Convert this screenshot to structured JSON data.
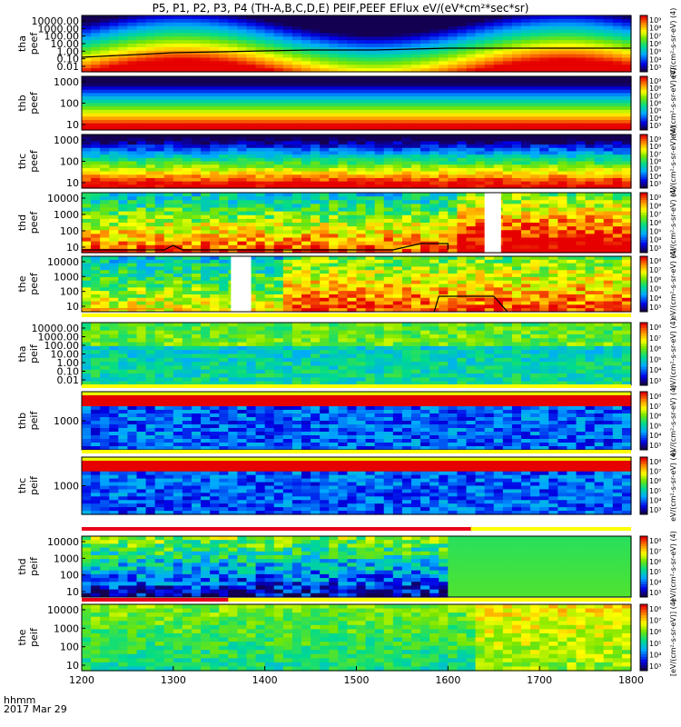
{
  "title": "P5, P1, P2, P3, P4 (TH-A,B,C,D,E) PEIF,PEEF EFlux eV/(eV*cm²*sec*sr)",
  "footer": {
    "xunit": "hhmm",
    "date": "2017 Mar 29"
  },
  "colors": {
    "background": "#ffffff",
    "axes": "#000000",
    "overlay": "#000000",
    "flag_red": "#e8001a",
    "flag_yellow": "#ffff00"
  },
  "chart_data": [
    {
      "type": "heatmap",
      "id": "tha-peef",
      "ylabel": [
        "tha",
        "peef"
      ],
      "yticks": [
        "10000.00",
        "1000.00",
        "100.00",
        "10.00",
        "1.00",
        "0.10",
        "0.01"
      ],
      "yscale": "log",
      "cbar_ticks": [
        "10⁹",
        "10⁸",
        "10⁷",
        "10⁶",
        "10⁵",
        "10⁴",
        "10³"
      ],
      "cbar_label": "eV/(cm²-s-sr-eV) (4)",
      "flag_bar": false
    },
    {
      "type": "heatmap",
      "id": "thb-peef",
      "ylabel": [
        "thb",
        "peef"
      ],
      "yticks": [
        "1000",
        "100",
        "10"
      ],
      "yscale": "log",
      "cbar_ticks": [
        "10⁹",
        "10⁸",
        "10⁷",
        "10⁶",
        "10⁵",
        "10⁴",
        "10³"
      ],
      "cbar_label": "eV/(cm²-s-sr-eV) (4)",
      "flag_bar": false
    },
    {
      "type": "heatmap",
      "id": "thc-peef",
      "ylabel": [
        "thc",
        "peef"
      ],
      "yticks": [
        "1000",
        "100",
        "10"
      ],
      "yscale": "log",
      "cbar_ticks": [
        "10⁹",
        "10⁸",
        "10⁷",
        "10⁶",
        "10⁵",
        "10⁴",
        "10³"
      ],
      "cbar_label": "eV/(cm²-s-sr-eV) (4)",
      "flag_bar": false
    },
    {
      "type": "heatmap",
      "id": "thd-peef",
      "ylabel": [
        "thd",
        "peef"
      ],
      "yticks": [
        "10000",
        "1000",
        "100",
        "10"
      ],
      "yscale": "log",
      "cbar_ticks": [
        "10⁹",
        "10⁸",
        "10⁷",
        "10⁶",
        "10⁵",
        "10⁴",
        "10³"
      ],
      "cbar_label": "eV/(cm²-s-sr-eV) (4)",
      "flag_bar": false
    },
    {
      "type": "heatmap",
      "id": "the-peef",
      "ylabel": [
        "the",
        "peef"
      ],
      "yticks": [
        "10000",
        "1000",
        "100",
        "10"
      ],
      "yscale": "log",
      "cbar_ticks": [
        "10⁸",
        "10⁷",
        "10⁶",
        "10⁵",
        "10⁴",
        "10³"
      ],
      "cbar_label": "eV/(cm²-s-sr-eV) (4)",
      "flag_bar": false
    },
    {
      "type": "heatmap",
      "id": "tha-peif",
      "ylabel": [
        "tha",
        "peif"
      ],
      "yticks": [
        "10000.00",
        "1000.00",
        "100.00",
        "10.00",
        "1.00",
        "0.10",
        "0.01"
      ],
      "yscale": "log",
      "cbar_ticks": [
        "10⁸",
        "10⁷",
        "10⁶",
        "10⁵",
        "10⁴",
        "10³"
      ],
      "cbar_label": "eV/(cm²-s-sr-eV) (4)",
      "flag_bar": true
    },
    {
      "type": "heatmap",
      "id": "thb-peif",
      "ylabel": [
        "thb",
        "peif"
      ],
      "yticks": [
        "1000"
      ],
      "yscale": "log",
      "cbar_ticks": [
        "10⁸",
        "10⁷",
        "10⁶",
        "10⁵",
        "10⁴",
        "10³"
      ],
      "cbar_label": "eV/(cm²-s-sr-eV) (4)",
      "flag_bar": true
    },
    {
      "type": "heatmap",
      "id": "thc-peif",
      "ylabel": [
        "thc",
        "peif"
      ],
      "yticks": [
        "1000"
      ],
      "yscale": "log",
      "cbar_ticks": [
        "10⁸",
        "10⁷",
        "10⁶",
        "10⁵",
        "10⁴",
        "10³"
      ],
      "cbar_label": "eV/(cm²-s-sr-eV) (4)",
      "flag_bar": true
    },
    {
      "type": "heatmap",
      "id": "thd-peif",
      "ylabel": [
        "thd",
        "peif"
      ],
      "yticks": [
        "10000",
        "1000",
        "100",
        "10"
      ],
      "yscale": "log",
      "cbar_ticks": [
        "10⁸",
        "10⁷",
        "10⁶",
        "10⁵",
        "10⁴",
        "10³"
      ],
      "cbar_label": "eV/(cm²-s-sr-eV) (4)",
      "flag_bar": true
    },
    {
      "type": "heatmap",
      "id": "the-peif",
      "ylabel": [
        "the",
        "peif"
      ],
      "yticks": [
        "10000",
        "1000",
        "100",
        "10"
      ],
      "yscale": "log",
      "cbar_ticks": [
        "10⁸",
        "10⁷",
        "10⁶",
        "10⁵",
        "10⁴",
        "10³"
      ],
      "cbar_label": "[eV/(cm²-s-sr-eV)] (4)",
      "flag_bar": true
    }
  ],
  "xaxis": {
    "ticks": [
      "1200",
      "1300",
      "1400",
      "1500",
      "1600",
      "1700",
      "1800"
    ],
    "xlim": [
      1200,
      1800
    ]
  }
}
